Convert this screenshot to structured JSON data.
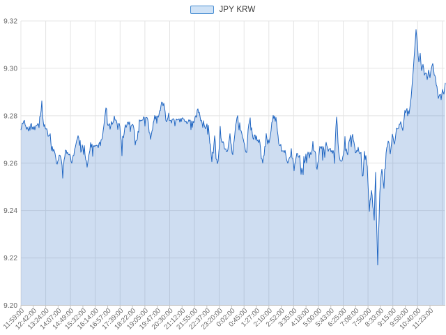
{
  "legend": {
    "label": "JPY KRW"
  },
  "colors": {
    "line": "#2066c2",
    "fill_rgba": "rgba(30,100,190,0.22)",
    "grid": "#e4e4e4",
    "axis_line": "#c6c6c6",
    "tick": "#c6c6c6",
    "axis_text": "#666666",
    "legend_border": "#4a8fd3",
    "legend_fill": "#cfe2f6",
    "background": "#ffffff"
  },
  "chart_data": {
    "type": "area",
    "series_name": "JPY KRW",
    "title": "",
    "xlabel": "",
    "ylabel": "",
    "ylim": [
      9.2,
      9.32
    ],
    "yticks": [
      9.2,
      9.22,
      9.24,
      9.26,
      9.28,
      9.3,
      9.32
    ],
    "grid": true,
    "legend_position": "top",
    "xticklabels": [
      "11:59:00",
      "12:42:00",
      "13:24:00",
      "14:07:00",
      "14:49:00",
      "15:32:00",
      "16:14:00",
      "16:57:00",
      "17:39:00",
      "18:22:00",
      "19:05:00",
      "19:47:00",
      "20:30:00",
      "21:12:00",
      "21:55:00",
      "22:37:00",
      "23:20:00",
      "0:02:00",
      "0:45:00",
      "1:27:00",
      "2:10:00",
      "2:52:00",
      "3:35:00",
      "4:18:00",
      "5:00:00",
      "5:43:00",
      "6:25:00",
      "7:08:00",
      "7:50:00",
      "8:33:00",
      "9:15:00",
      "9:58:00",
      "10:40:00",
      "11:23:00"
    ],
    "anchors": [
      [
        0,
        9.2745
      ],
      [
        4,
        9.2785
      ],
      [
        8,
        9.2745
      ],
      [
        14,
        9.2765
      ],
      [
        20,
        9.2745
      ],
      [
        26,
        9.2775
      ],
      [
        30,
        9.284
      ],
      [
        33,
        9.276
      ],
      [
        38,
        9.2745
      ],
      [
        43,
        9.2685
      ],
      [
        48,
        9.264
      ],
      [
        52,
        9.26
      ],
      [
        56,
        9.2632
      ],
      [
        60,
        9.258
      ],
      [
        64,
        9.2645
      ],
      [
        70,
        9.2638
      ],
      [
        73,
        9.26
      ],
      [
        78,
        9.2665
      ],
      [
        82,
        9.2708
      ],
      [
        86,
        9.2655
      ],
      [
        90,
        9.268
      ],
      [
        95,
        9.259
      ],
      [
        100,
        9.2675
      ],
      [
        106,
        9.2668
      ],
      [
        110,
        9.2672
      ],
      [
        116,
        9.269
      ],
      [
        122,
        9.283
      ],
      [
        125,
        9.2752
      ],
      [
        130,
        9.2765
      ],
      [
        136,
        9.2773
      ],
      [
        142,
        9.276
      ],
      [
        145,
        9.2655
      ],
      [
        150,
        9.276
      ],
      [
        156,
        9.2768
      ],
      [
        162,
        9.2755
      ],
      [
        166,
        9.2675
      ],
      [
        170,
        9.2778
      ],
      [
        176,
        9.279
      ],
      [
        182,
        9.278
      ],
      [
        186,
        9.27
      ],
      [
        192,
        9.2795
      ],
      [
        198,
        9.28
      ],
      [
        202,
        9.2848
      ],
      [
        206,
        9.284
      ],
      [
        210,
        9.2785
      ],
      [
        216,
        9.278
      ],
      [
        220,
        9.279
      ],
      [
        226,
        9.2775
      ],
      [
        232,
        9.2785
      ],
      [
        238,
        9.277
      ],
      [
        244,
        9.278
      ],
      [
        250,
        9.2776
      ],
      [
        254,
        9.283
      ],
      [
        260,
        9.276
      ],
      [
        266,
        9.2745
      ],
      [
        270,
        9.272
      ],
      [
        274,
        9.261
      ],
      [
        278,
        9.27
      ],
      [
        282,
        9.2595
      ],
      [
        286,
        9.27
      ],
      [
        290,
        9.268
      ],
      [
        296,
        9.265
      ],
      [
        300,
        9.2715
      ],
      [
        304,
        9.263
      ],
      [
        310,
        9.28
      ],
      [
        314,
        9.276
      ],
      [
        320,
        9.268
      ],
      [
        324,
        9.265
      ],
      [
        328,
        9.281
      ],
      [
        332,
        9.272
      ],
      [
        338,
        9.27
      ],
      [
        342,
        9.2695
      ],
      [
        347,
        9.259
      ],
      [
        352,
        9.271
      ],
      [
        356,
        9.268
      ],
      [
        362,
        9.28
      ],
      [
        366,
        9.278
      ],
      [
        370,
        9.269
      ],
      [
        374,
        9.266
      ],
      [
        380,
        9.264
      ],
      [
        384,
        9.26
      ],
      [
        388,
        9.2655
      ],
      [
        392,
        9.258
      ],
      [
        396,
        9.264
      ],
      [
        400,
        9.262
      ],
      [
        405,
        9.2565
      ],
      [
        410,
        9.264
      ],
      [
        414,
        9.2625
      ],
      [
        418,
        9.2655
      ],
      [
        422,
        9.266
      ],
      [
        425,
        9.258
      ],
      [
        430,
        9.268
      ],
      [
        434,
        9.2655
      ],
      [
        438,
        9.268
      ],
      [
        442,
        9.266
      ],
      [
        446,
        9.2645
      ],
      [
        450,
        9.265
      ],
      [
        453,
        9.2794
      ],
      [
        456,
        9.265
      ],
      [
        460,
        9.2595
      ],
      [
        464,
        9.266
      ],
      [
        468,
        9.265
      ],
      [
        472,
        9.27
      ],
      [
        476,
        9.272
      ],
      [
        480,
        9.265
      ],
      [
        484,
        9.2655
      ],
      [
        488,
        9.264
      ],
      [
        490,
        9.2503
      ],
      [
        493,
        9.265
      ],
      [
        497,
        9.259
      ],
      [
        500,
        9.2406
      ],
      [
        503,
        9.2485
      ],
      [
        507,
        9.2368
      ],
      [
        509,
        9.255
      ],
      [
        512,
        9.2165
      ],
      [
        515,
        9.248
      ],
      [
        518,
        9.258
      ],
      [
        521,
        9.249
      ],
      [
        524,
        9.263
      ],
      [
        527,
        9.27
      ],
      [
        530,
        9.264
      ],
      [
        533,
        9.272
      ],
      [
        536,
        9.268
      ],
      [
        539,
        9.275
      ],
      [
        542,
        9.275
      ],
      [
        545,
        9.278
      ],
      [
        548,
        9.274
      ],
      [
        551,
        9.281
      ],
      [
        554,
        9.283
      ],
      [
        557,
        9.281
      ],
      [
        560,
        9.288
      ],
      [
        563,
        9.299
      ],
      [
        565,
        9.308
      ],
      [
        567,
        9.316
      ],
      [
        569,
        9.31
      ],
      [
        571,
        9.303
      ],
      [
        573,
        9.306
      ],
      [
        575,
        9.299
      ],
      [
        577,
        9.302
      ],
      [
        579,
        9.297
      ],
      [
        581,
        9.299
      ],
      [
        583,
        9.296
      ],
      [
        585,
        9.299
      ],
      [
        587,
        9.296
      ],
      [
        589,
        9.3
      ],
      [
        591,
        9.3024
      ],
      [
        593,
        9.298
      ],
      [
        595,
        9.296
      ],
      [
        597,
        9.292
      ],
      [
        599,
        9.2876
      ],
      [
        601,
        9.289
      ],
      [
        603,
        9.287
      ],
      [
        605,
        9.291
      ],
      [
        607,
        9.289
      ],
      [
        609,
        9.294
      ]
    ],
    "noise_zones": [
      [
        30,
        0.0018
      ],
      [
        110,
        0.0022
      ],
      [
        270,
        0.002
      ],
      [
        475,
        0.0028
      ],
      [
        530,
        0.0022
      ],
      [
        560,
        0.0012
      ],
      [
        610,
        0.0007
      ]
    ],
    "noise_seed": 11
  }
}
